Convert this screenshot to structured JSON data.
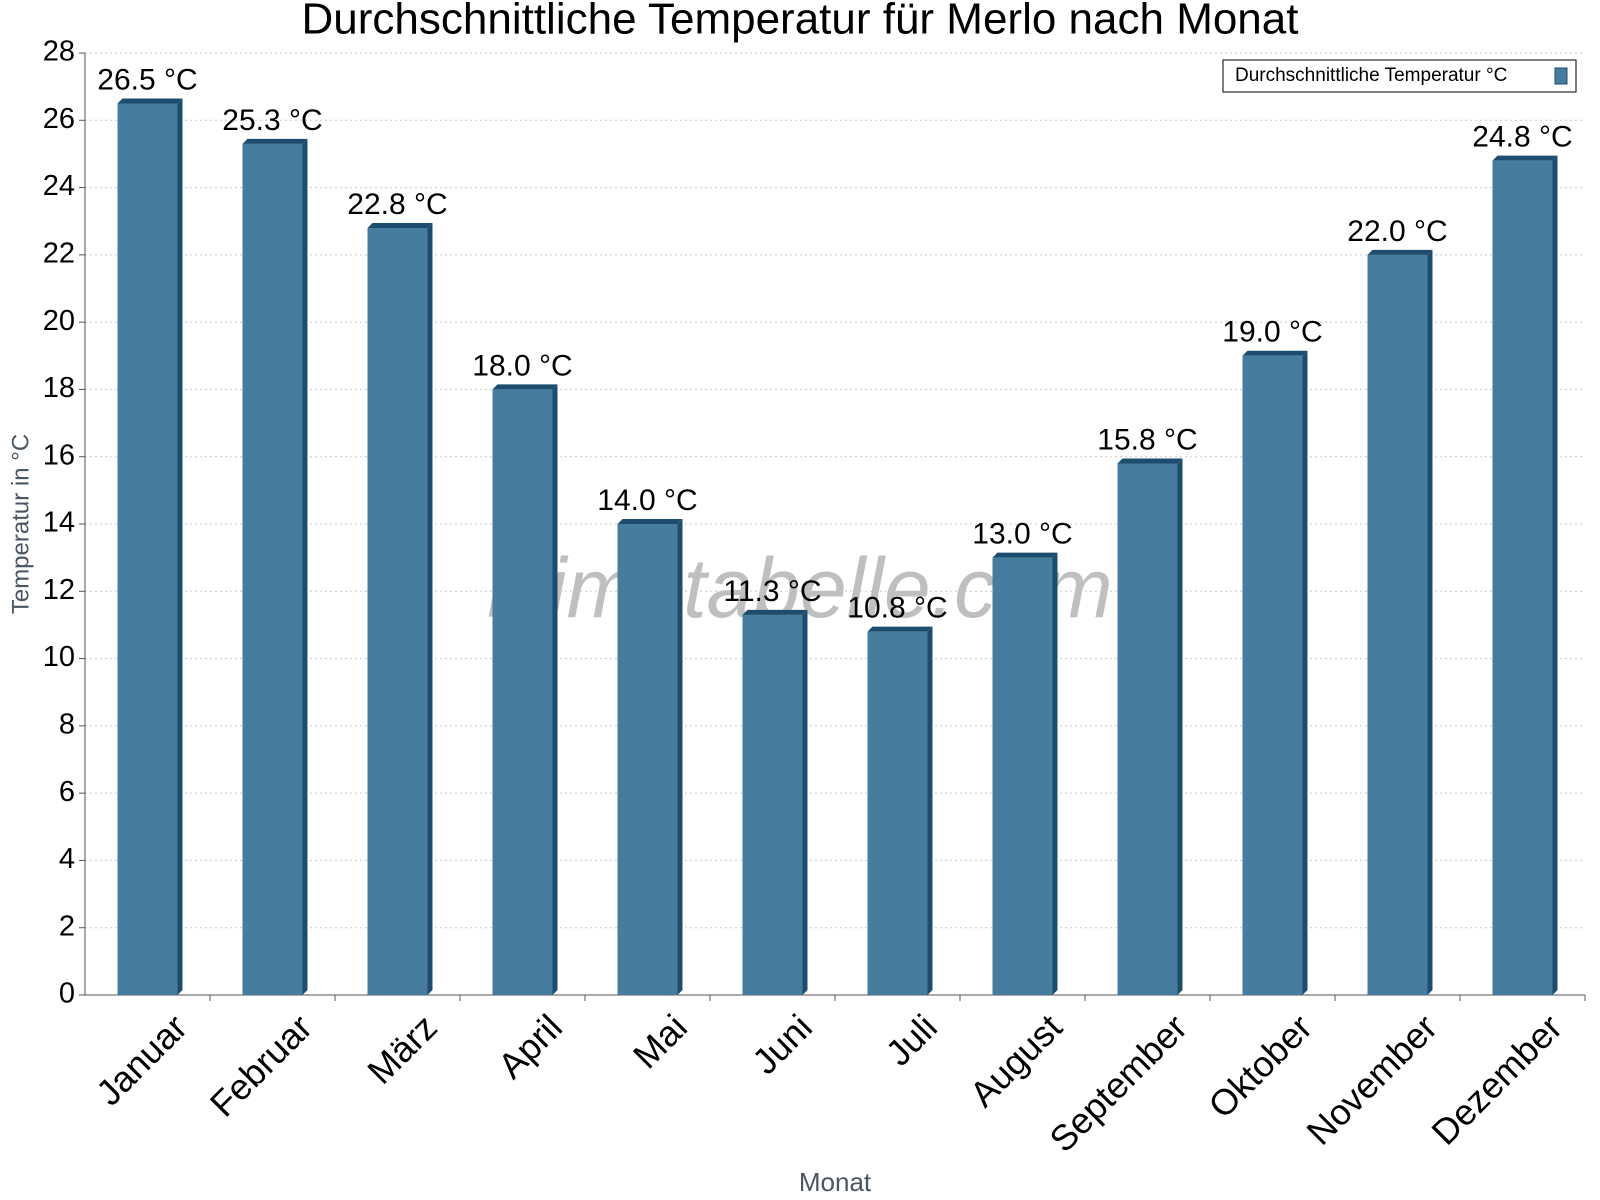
{
  "chart_data": {
    "type": "bar",
    "title": "Durchschnittliche Temperatur für Merlo nach Monat",
    "watermark": "klimatabelle.com",
    "x_label": "Monat",
    "y_label": "Temperatur in °C",
    "categories": [
      "Januar",
      "Februar",
      "März",
      "April",
      "Mai",
      "Juni",
      "Juli",
      "August",
      "September",
      "Oktober",
      "November",
      "Dezember"
    ],
    "series": [
      {
        "name": "Durchschnittliche Temperatur °C",
        "color": "#467c9e",
        "values": [
          26.5,
          25.3,
          22.8,
          18.0,
          14.0,
          11.3,
          10.8,
          13.0,
          15.8,
          19.0,
          22.0,
          24.8
        ],
        "value_labels": [
          "26.5 °C",
          "25.3 °C",
          "22.8 °C",
          "18.0 °C",
          "14.0 °C",
          "11.3 °C",
          "10.8 °C",
          "13.0 °C",
          "15.8 °C",
          "19.0 °C",
          "22.0 °C",
          "24.8 °C"
        ]
      }
    ],
    "ylim": [
      0,
      28
    ],
    "yticks": [
      0,
      2,
      4,
      6,
      8,
      10,
      12,
      14,
      16,
      18,
      20,
      22,
      24,
      26,
      28
    ],
    "grid": true,
    "legend": "top-right"
  }
}
